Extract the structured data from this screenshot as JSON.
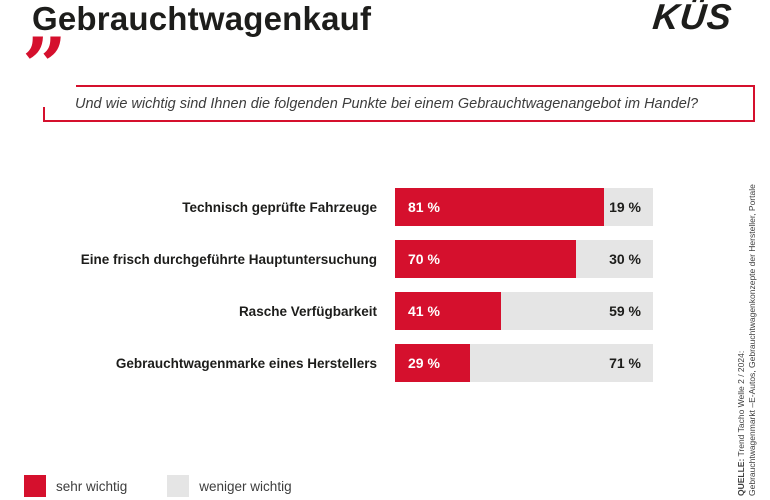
{
  "header": {
    "title": "Gebrauchtwagenkauf",
    "logo_text": "KÜS"
  },
  "question": {
    "quote_mark": "”",
    "text": "Und wie wichtig sind Ihnen die folgenden Punkte bei einem Gebrauchtwagenangebot im Handel?"
  },
  "chart_data": {
    "type": "bar",
    "orientation": "horizontal_stacked",
    "title": "Gebrauchtwagenkauf",
    "categories": [
      "Technisch geprüfte Fahrzeuge",
      "Eine frisch durchgeführte Hauptuntersuchung",
      "Rasche Verfügbarkeit",
      "Gebrauchtwagenmarke eines Herstellers"
    ],
    "series": [
      {
        "name": "sehr wichtig",
        "color": "#d5102d",
        "values": [
          81,
          70,
          41,
          29
        ]
      },
      {
        "name": "weniger wichtig",
        "color": "#e5e5e5",
        "values": [
          19,
          30,
          59,
          71
        ]
      }
    ],
    "value_suffix": " %",
    "xlim": [
      0,
      100
    ],
    "grid": false,
    "legend_position": "bottom-left"
  },
  "legend": {
    "items": [
      {
        "label": "sehr wichtig",
        "color": "#d5102d"
      },
      {
        "label": "weniger wichtig",
        "color": "#e5e5e5"
      }
    ]
  },
  "source": {
    "label": "QUELLE:",
    "line1_rest": " Trend Tacho Welle 2 / 2024:",
    "line2": "Gebrauchtwagenmarkt –E-Autos, Gebrauchtwagenkonzepte der Hersteller, Portale"
  },
  "colors": {
    "accent_red": "#d5102d",
    "bar_gray": "#e5e5e5",
    "text_dark": "#1d1d1b",
    "text_gray": "#3d3d3d"
  }
}
